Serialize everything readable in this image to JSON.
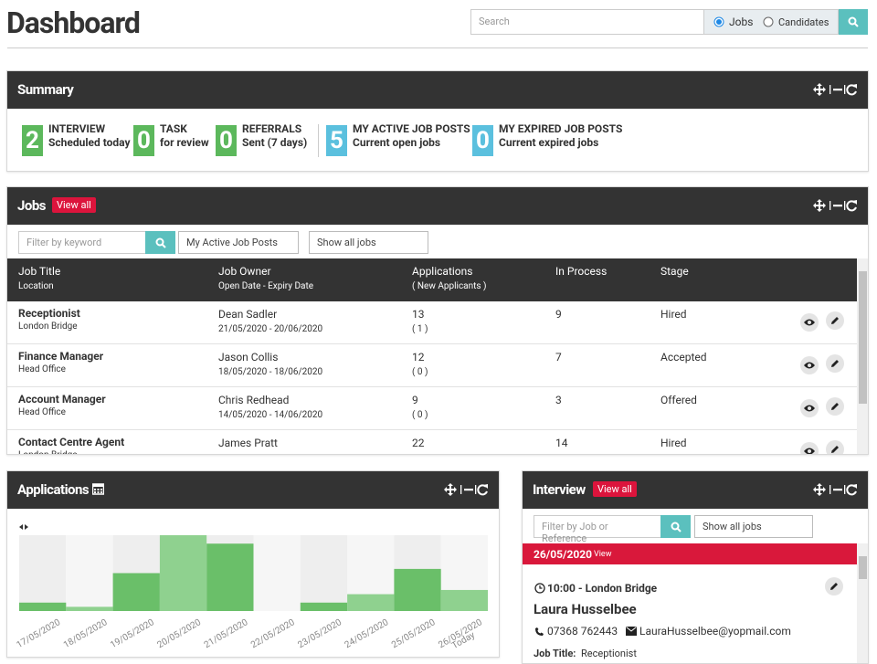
{
  "header": {
    "title": "Dashboard",
    "search_placeholder": "Search",
    "radio_jobs": "Jobs",
    "radio_candidates": "Candidates"
  },
  "summary": {
    "title": "Summary",
    "items": [
      {
        "count": 2,
        "label": "INTERVIEW",
        "sub": "Scheduled today",
        "color": "#5cb85c"
      },
      {
        "count": 0,
        "label": "TASK",
        "sub": "for review",
        "color": "#5cb85c"
      },
      {
        "count": 0,
        "label": "REFERRALS",
        "sub": "Sent (7 days)",
        "color": "#5cb85c"
      },
      {
        "count": 5,
        "label": "MY ACTIVE JOB POSTS",
        "sub": "Current open jobs",
        "color": "#5bc0de"
      },
      {
        "count": 0,
        "label": "MY EXPIRED JOB POSTS",
        "sub": "Current expired jobs",
        "color": "#5bc0de"
      }
    ]
  },
  "jobs": {
    "title": "Jobs",
    "view_all": "View all",
    "filter_placeholder": "Filter by keyword",
    "select_posts": "My Active Job Posts",
    "select_jobs": "Show all jobs",
    "columns": [
      {
        "title": "Job Title",
        "sub": "Location"
      },
      {
        "title": "Job Owner",
        "sub": "Open Date - Expiry Date"
      },
      {
        "title": "Applications",
        "sub": "( New Applicants )"
      },
      {
        "title": "In Process"
      },
      {
        "title": "Stage"
      }
    ],
    "rows": [
      {
        "title": "Receptionist",
        "location": "London Bridge",
        "owner": "Dean Sadler",
        "dates": "21/05/2020 - 20/06/2020",
        "applications": 13,
        "new": "( 1 )",
        "in_process": 9,
        "stage": "Hired"
      },
      {
        "title": "Finance Manager",
        "location": "Head Office",
        "owner": "Jason Collis",
        "dates": "18/05/2020 - 18/06/2020",
        "applications": 12,
        "new": "( 0 )",
        "in_process": 7,
        "stage": "Accepted"
      },
      {
        "title": "Account Manager",
        "location": "Head Office",
        "owner": "Chris Redhead",
        "dates": "14/05/2020 - 14/06/2020",
        "applications": 9,
        "new": "( 0 )",
        "in_process": 3,
        "stage": "Offered"
      },
      {
        "title": "Contact Centre Agent",
        "location": "London Bridge",
        "owner": "James Pratt",
        "applications": 22,
        "in_process": 14,
        "stage": "Hired"
      }
    ]
  },
  "applications": {
    "title": "Applications",
    "chart_data": {
      "type": "bar",
      "categories": [
        "17/05/2020",
        "18/05/2020",
        "19/05/2020",
        "20/05/2020",
        "21/05/2020",
        "22/05/2020",
        "23/05/2020",
        "24/05/2020",
        "25/05/2020",
        "26/05/2020"
      ],
      "values": [
        2,
        1,
        9,
        18,
        16,
        0,
        2,
        4,
        10,
        5
      ],
      "colors": [
        "#6abf69",
        "#8fd18f",
        "#6abf69",
        "#8fd18f",
        "#6abf69",
        "#8fd18f",
        "#6abf69",
        "#8fd18f",
        "#6abf69",
        "#8fd18f"
      ],
      "ylim": [
        0,
        18
      ],
      "today_label": "Today"
    }
  },
  "interview": {
    "title": "Interview",
    "view_all": "View all",
    "filter_placeholder": "Filter by Job or Reference",
    "select_jobs": "Show all jobs",
    "date": "26/05/2020",
    "date_view": "View",
    "time": "10:00 - London Bridge",
    "name": "Laura Husselbee",
    "phone": "07368 762443",
    "email": "LauraHusselbee@yopmail.com",
    "job_title_label": "Job Title:",
    "job_title": "Receptionist"
  }
}
